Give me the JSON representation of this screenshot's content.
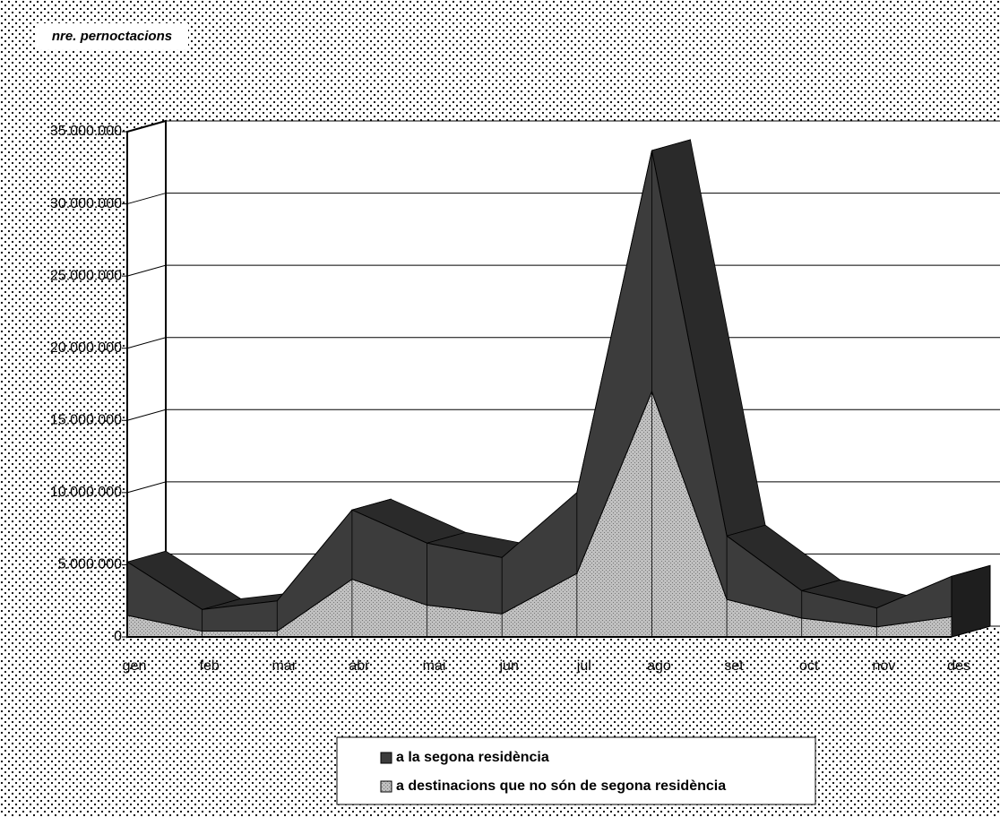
{
  "chart_data": {
    "type": "area3d",
    "y_axis_title": "nre. pernoctacions",
    "categories": [
      "gen",
      "feb",
      "mar",
      "abr",
      "mai",
      "jun",
      "jul",
      "ago",
      "set",
      "oct",
      "nov",
      "des"
    ],
    "stacked": true,
    "series": [
      {
        "name": "a destinacions que no són de segona residència",
        "color": "#b4b4b4",
        "values": [
          1500000,
          400000,
          400000,
          4000000,
          2200000,
          1600000,
          4400000,
          17000000,
          2600000,
          1300000,
          700000,
          1400000
        ]
      },
      {
        "name": "a la segona residència",
        "color": "#3c3c3c",
        "values": [
          3700000,
          1500000,
          2100000,
          4800000,
          4300000,
          3900000,
          5600000,
          16700000,
          4400000,
          1900000,
          1300000,
          2800000
        ]
      }
    ],
    "legend_order": [
      1,
      0
    ],
    "ylim": [
      0,
      35000000
    ],
    "yticks": [
      0,
      {
        "value": 5000000,
        "label": "5.000.000"
      },
      {
        "value": 10000000,
        "label": "10.000.000"
      },
      {
        "value": 15000000,
        "label": "15.000.000"
      },
      {
        "value": 20000000,
        "label": "20.000.000"
      },
      {
        "value": 25000000,
        "label": "25.000.000"
      },
      {
        "value": 30000000,
        "label": "30.000.000"
      },
      {
        "value": 35000000,
        "label": "35.000.000"
      }
    ],
    "grid": true
  }
}
